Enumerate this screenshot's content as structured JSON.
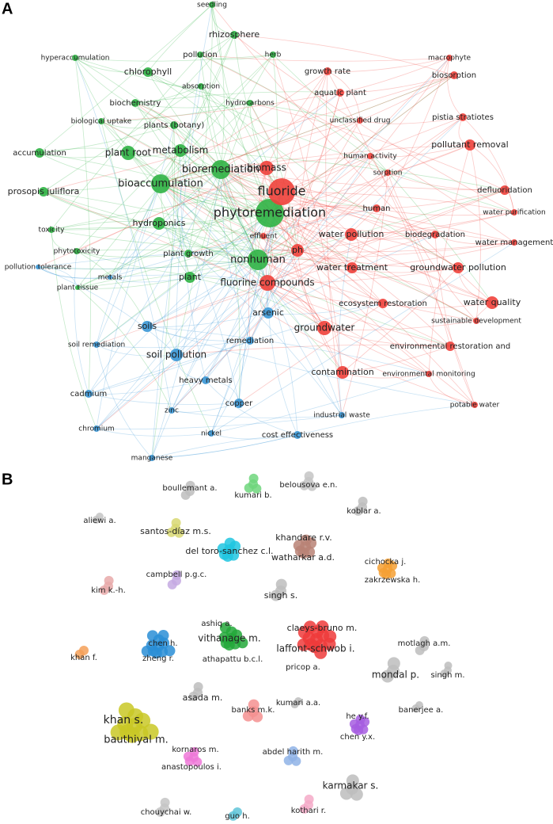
{
  "panels": [
    {
      "label": "A",
      "nodes": [
        {
          "label": "seedling"
        },
        {
          "label": "rhizosphere"
        },
        {
          "label": "pollution"
        },
        {
          "label": "herb"
        },
        {
          "label": "hyperaccumulation"
        },
        {
          "label": "chlorophyll"
        },
        {
          "label": "absorption"
        },
        {
          "label": "biochemistry"
        },
        {
          "label": "hydrocarbons"
        },
        {
          "label": "biological uptake"
        },
        {
          "label": "plants (botany)"
        },
        {
          "label": "accumulation"
        },
        {
          "label": "plant root"
        },
        {
          "label": "metabolism"
        },
        {
          "label": "bioaccumulation"
        },
        {
          "label": "bioremediation"
        },
        {
          "label": "prosopis juliflora"
        },
        {
          "label": "hydroponics"
        },
        {
          "label": "phytoremediation"
        },
        {
          "label": "toxicity"
        },
        {
          "label": "phytotoxicity"
        },
        {
          "label": "plant growth"
        },
        {
          "label": "nonhuman"
        },
        {
          "label": "pollution tolerance"
        },
        {
          "label": "metals"
        },
        {
          "label": "plant"
        },
        {
          "label": "plant tissue"
        },
        {
          "label": "fluoride"
        },
        {
          "label": "biomass"
        },
        {
          "label": "growth rate"
        },
        {
          "label": "macrophyte"
        },
        {
          "label": "aquatic plant"
        },
        {
          "label": "biosorption"
        },
        {
          "label": "unclassified drug"
        },
        {
          "label": "pistia stratiotes"
        },
        {
          "label": "pollutant removal"
        },
        {
          "label": "human activity"
        },
        {
          "label": "sorption"
        },
        {
          "label": "defluoridation"
        },
        {
          "label": "human"
        },
        {
          "label": "water purification"
        },
        {
          "label": "water pollution"
        },
        {
          "label": "biodegradation"
        },
        {
          "label": "water management"
        },
        {
          "label": "ph"
        },
        {
          "label": "effluent"
        },
        {
          "label": "water treatment"
        },
        {
          "label": "groundwater pollution"
        },
        {
          "label": "fluorine compounds"
        },
        {
          "label": "ecosystem restoration"
        },
        {
          "label": "water quality"
        },
        {
          "label": "sustainable development"
        },
        {
          "label": "groundwater"
        },
        {
          "label": "environmental restoration and"
        },
        {
          "label": "contamination"
        },
        {
          "label": "environmental monitoring"
        },
        {
          "label": "potable water"
        },
        {
          "label": "arsenic"
        },
        {
          "label": "soils"
        },
        {
          "label": "remediation"
        },
        {
          "label": "soil remediation"
        },
        {
          "label": "soil pollution"
        },
        {
          "label": "heavy metals"
        },
        {
          "label": "cadmium"
        },
        {
          "label": "copper"
        },
        {
          "label": "zinc"
        },
        {
          "label": "industrial waste"
        },
        {
          "label": "chromium"
        },
        {
          "label": "nickel"
        },
        {
          "label": "cost effectiveness"
        },
        {
          "label": "manganese"
        }
      ]
    },
    {
      "label": "B",
      "nodes": [
        {
          "label": "boullemant a."
        },
        {
          "label": "kumari b."
        },
        {
          "label": "belousova e.n."
        },
        {
          "label": "koblar a."
        },
        {
          "label": "aliewi a."
        },
        {
          "label": "santos-díaz m.s."
        },
        {
          "label": "khandare r.v."
        },
        {
          "label": "del toro-sanchez c.l."
        },
        {
          "label": "watharkar a.d."
        },
        {
          "label": "cichocka j."
        },
        {
          "label": "campbell p.g.c."
        },
        {
          "label": "zakrzewska h."
        },
        {
          "label": "kim k.-h."
        },
        {
          "label": "singh s."
        },
        {
          "label": "ashiq a."
        },
        {
          "label": "claeys-bruno m."
        },
        {
          "label": "chen h."
        },
        {
          "label": "vithanage m."
        },
        {
          "label": "motlagh a.m."
        },
        {
          "label": "laffont-schwob i."
        },
        {
          "label": "khan f."
        },
        {
          "label": "zheng r."
        },
        {
          "label": "athapattu b.c.l."
        },
        {
          "label": "pricop a."
        },
        {
          "label": "mondal p."
        },
        {
          "label": "singh m."
        },
        {
          "label": "asada m."
        },
        {
          "label": "kumari a.a."
        },
        {
          "label": "banks m.k."
        },
        {
          "label": "banerjee a."
        },
        {
          "label": "he y.f."
        },
        {
          "label": "khan s."
        },
        {
          "label": "bauthiyal m."
        },
        {
          "label": "chen y.x."
        },
        {
          "label": "kornaros m."
        },
        {
          "label": "abdel harith m."
        },
        {
          "label": "anastopoulos i."
        },
        {
          "label": "karmakar s."
        },
        {
          "label": "chouychai w."
        },
        {
          "label": "guo h."
        },
        {
          "label": "kothari r."
        }
      ]
    }
  ]
}
